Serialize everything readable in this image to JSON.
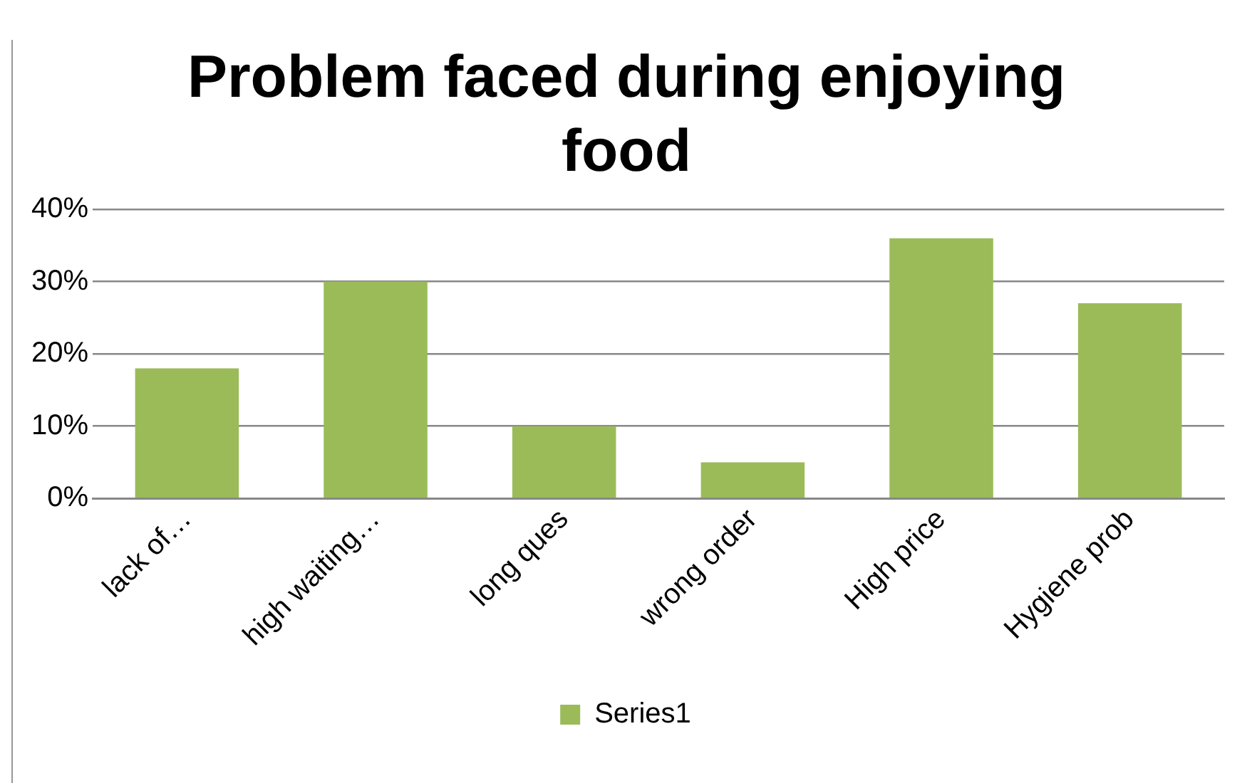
{
  "chart_data": {
    "type": "bar",
    "title": "Problem faced during enjoying food",
    "categories": [
      "lack of…",
      "high waiting…",
      "long ques",
      "wrong order",
      "High price",
      "Hygiene prob"
    ],
    "series": [
      {
        "name": "Series1",
        "color": "#9bbb59",
        "values": [
          18,
          30,
          10,
          5,
          36,
          27
        ]
      }
    ],
    "ylim": [
      0,
      40
    ],
    "yticks": [
      {
        "value": 0,
        "label": "0%"
      },
      {
        "value": 10,
        "label": "10%"
      },
      {
        "value": 20,
        "label": "20%"
      },
      {
        "value": 30,
        "label": "30%"
      },
      {
        "value": 40,
        "label": "40%"
      }
    ],
    "grid": "y",
    "legend": "bottom"
  }
}
